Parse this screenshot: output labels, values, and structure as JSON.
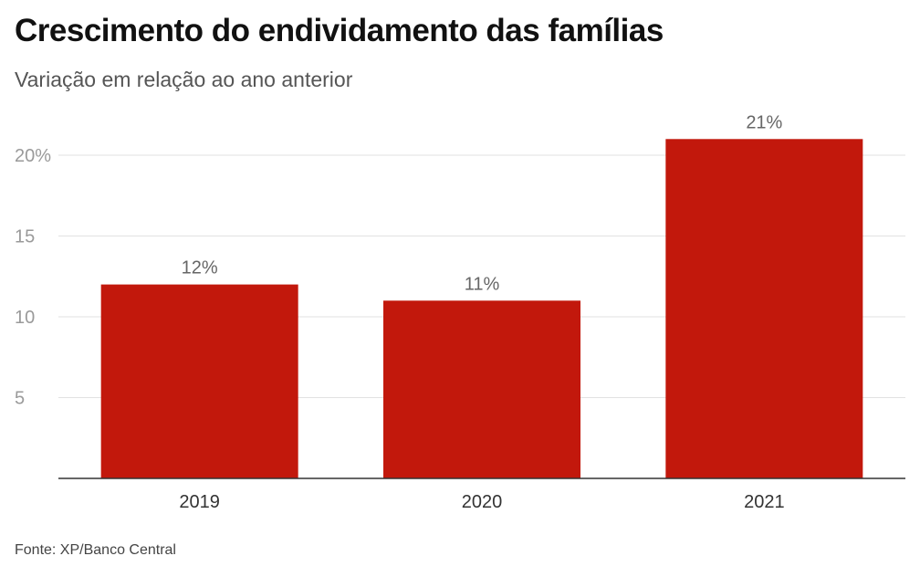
{
  "title": "Crescimento do endividamento das famílias",
  "subtitle": "Variação em relação ao ano anterior",
  "source": "Fonte: XP/Banco Central",
  "colors": {
    "bar": "#c2180c",
    "grid": "#e2e2e2",
    "axis": "#333333",
    "tick_label": "#9a9a9a",
    "data_label": "#666666",
    "category_label": "#333333"
  },
  "chart_data": {
    "type": "bar",
    "title": "Crescimento do endividamento das famílias",
    "subtitle": "Variação em relação ao ano anterior",
    "categories": [
      "2019",
      "2020",
      "2021"
    ],
    "values": [
      12,
      11,
      21
    ],
    "data_labels": [
      "12%",
      "11%",
      "21%"
    ],
    "y_ticks": [
      5,
      10,
      15,
      20
    ],
    "y_tick_labels": [
      "5",
      "10",
      "15",
      "20%"
    ],
    "ylim": [
      0,
      21
    ],
    "xlabel": "",
    "ylabel": "",
    "grid": true
  }
}
